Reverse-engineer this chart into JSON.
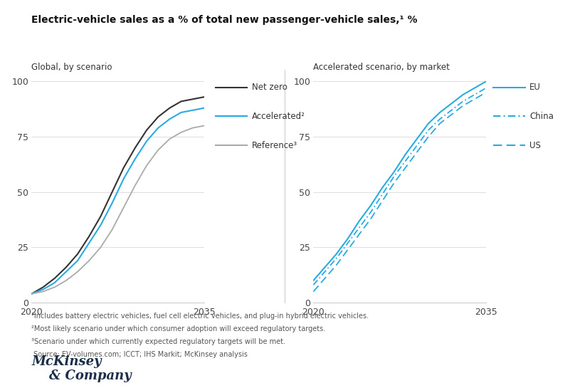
{
  "title": "Electric-vehicle sales as a % of total new passenger-vehicle sales,¹ %",
  "left_subtitle": "Global, by scenario",
  "right_subtitle": "Accelerated scenario, by market",
  "x_start": 2020,
  "x_end": 2035,
  "y_min": 0,
  "y_max": 100,
  "yticks": [
    0,
    25,
    50,
    75,
    100
  ],
  "xticks": [
    2020,
    2035
  ],
  "footnotes": [
    "¹Includes battery electric vehicles, fuel cell electric vehicles, and plug-in hybrid electric vehicles.",
    "²Most likely scenario under which consumer adoption will exceed regulatory targets.",
    "³Scenario under which currently expected regulatory targets will be met.",
    " Source: EV-volumes.com; ICCT; IHS Markit; McKinsey analysis"
  ],
  "left_curves": {
    "net_zero": {
      "color": "#333333",
      "linestyle": "solid",
      "lw": 1.5,
      "x": [
        2020,
        2021,
        2022,
        2023,
        2024,
        2025,
        2026,
        2027,
        2028,
        2029,
        2030,
        2031,
        2032,
        2033,
        2034,
        2035
      ],
      "y": [
        4,
        7,
        11,
        16,
        22,
        30,
        39,
        50,
        61,
        70,
        78,
        84,
        88,
        91,
        92,
        93
      ]
    },
    "accelerated": {
      "color": "#29ABE2",
      "linestyle": "solid",
      "lw": 1.5,
      "x": [
        2020,
        2021,
        2022,
        2023,
        2024,
        2025,
        2026,
        2027,
        2028,
        2029,
        2030,
        2031,
        2032,
        2033,
        2034,
        2035
      ],
      "y": [
        4,
        6,
        9,
        14,
        19,
        27,
        35,
        45,
        56,
        65,
        73,
        79,
        83,
        86,
        87,
        88
      ]
    },
    "reference": {
      "color": "#AAAAAA",
      "linestyle": "solid",
      "lw": 1.3,
      "x": [
        2020,
        2021,
        2022,
        2023,
        2024,
        2025,
        2026,
        2027,
        2028,
        2029,
        2030,
        2031,
        2032,
        2033,
        2034,
        2035
      ],
      "y": [
        4,
        5,
        7,
        10,
        14,
        19,
        25,
        33,
        43,
        53,
        62,
        69,
        74,
        77,
        79,
        80
      ]
    }
  },
  "right_curves": {
    "eu": {
      "color": "#29ABE2",
      "linestyle": "solid",
      "lw": 1.5,
      "x": [
        2020,
        2021,
        2022,
        2023,
        2024,
        2025,
        2026,
        2027,
        2028,
        2029,
        2030,
        2031,
        2032,
        2033,
        2034,
        2035
      ],
      "y": [
        10,
        16,
        22,
        29,
        37,
        44,
        52,
        59,
        67,
        74,
        81,
        86,
        90,
        94,
        97,
        100
      ]
    },
    "china": {
      "color": "#29ABE2",
      "linestyle": "dashdot",
      "lw": 1.3,
      "x": [
        2020,
        2021,
        2022,
        2023,
        2024,
        2025,
        2026,
        2027,
        2028,
        2029,
        2030,
        2031,
        2032,
        2033,
        2034,
        2035
      ],
      "y": [
        8,
        14,
        20,
        27,
        34,
        41,
        49,
        57,
        64,
        71,
        78,
        83,
        87,
        91,
        94,
        97
      ]
    },
    "us": {
      "color": "#29ABE2",
      "linestyle": "dashed",
      "lw": 1.3,
      "x": [
        2020,
        2021,
        2022,
        2023,
        2024,
        2025,
        2026,
        2027,
        2028,
        2029,
        2030,
        2031,
        2032,
        2033,
        2034,
        2035
      ],
      "y": [
        5,
        11,
        17,
        24,
        31,
        38,
        46,
        54,
        61,
        68,
        75,
        81,
        85,
        89,
        92,
        95
      ]
    }
  },
  "left_legend": [
    {
      "label": "Net zero",
      "color": "#333333",
      "linestyle": "solid"
    },
    {
      "label": "Accelerated²",
      "color": "#29ABE2",
      "linestyle": "solid"
    },
    {
      "label": "Reference³",
      "color": "#AAAAAA",
      "linestyle": "solid"
    }
  ],
  "right_legend": [
    {
      "label": "EU",
      "color": "#29ABE2",
      "linestyle": "solid"
    },
    {
      "label": "China",
      "color": "#29ABE2",
      "linestyle": "dashdot"
    },
    {
      "label": "US",
      "color": "#29ABE2",
      "linestyle": "dashed"
    }
  ],
  "background_color": "#FFFFFF",
  "grid_color": "#DDDDDD",
  "mckinsey_color": "#1a2e4a"
}
